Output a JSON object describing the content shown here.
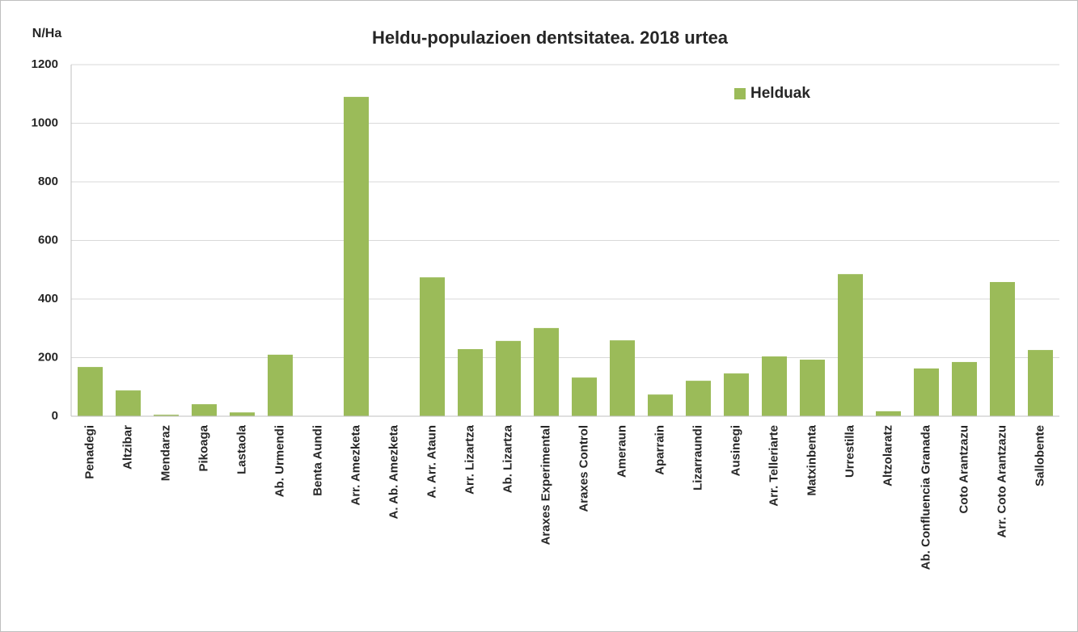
{
  "chart_data": {
    "type": "bar",
    "title": "Heldu-populazioen dentsitatea.  2018 urtea",
    "y_label": "N/Ha",
    "categories": [
      "Penadegi",
      "Altzibar",
      "Mendaraz",
      "Pikoaga",
      "Lastaola",
      "Ab. Urmendi",
      "Benta Aundi",
      "Arr. Amezketa",
      "A. Ab. Amezketa",
      "A. Arr. Ataun",
      "Arr. Lizartza",
      "Ab. Lizartza",
      "Araxes Experimental",
      "Araxes Control",
      "Ameraun",
      "Aparrain",
      "Lizarraundi",
      "Ausinegi",
      "Arr. Telleriarte",
      "Matxinbenta",
      "Urrestilla",
      "Altzolaratz",
      "Ab. Confluencia Granada",
      "Coto Arantzazu",
      "Arr. Coto Arantzazu",
      "Sallobente"
    ],
    "series": [
      {
        "name": "Helduak",
        "color": "#9bbb59",
        "values": [
          168,
          88,
          5,
          41,
          13,
          210,
          0,
          1090,
          0,
          474,
          229,
          257,
          301,
          132,
          259,
          74,
          121,
          146,
          204,
          193,
          485,
          17,
          163,
          185,
          458,
          226
        ]
      }
    ],
    "ylim": [
      0,
      1200
    ],
    "yticks": [
      0,
      200,
      400,
      600,
      800,
      1000,
      1200
    ],
    "grid": true,
    "legend": "top-right"
  }
}
